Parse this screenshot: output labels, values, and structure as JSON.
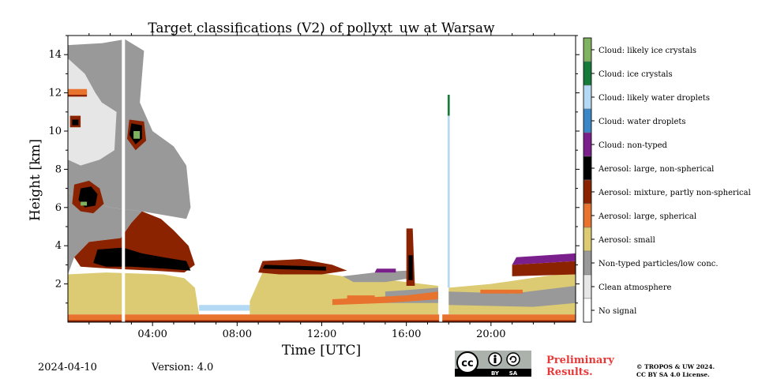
{
  "chart_data": {
    "type": "heatmap",
    "title": "Target classifications (V2) of pollyxt_uw at Warsaw",
    "xlabel": "Time [UTC]",
    "ylabel": "Height [km]",
    "xlim_hours": [
      0,
      24
    ],
    "ylim_km": [
      0,
      15
    ],
    "x_ticks": [
      "04:00",
      "08:00",
      "12:00",
      "16:00",
      "20:00"
    ],
    "x_tick_hours": [
      4,
      8,
      12,
      16,
      20
    ],
    "y_ticks": [
      "2",
      "4",
      "6",
      "8",
      "10",
      "12",
      "14"
    ],
    "y_tick_values": [
      2,
      4,
      6,
      8,
      10,
      12,
      14
    ],
    "legend": [
      {
        "label": "Cloud: likely ice crystals",
        "color": "#7fb35f"
      },
      {
        "label": "Cloud: ice crystals",
        "color": "#157a3a"
      },
      {
        "label": "Cloud: likely water droplets",
        "color": "#b3d9f5"
      },
      {
        "label": "Cloud: water droplets",
        "color": "#3a87c8"
      },
      {
        "label": "Cloud: non-typed",
        "color": "#7a1f8c"
      },
      {
        "label": "Aerosol: large, non-spherical",
        "color": "#000000"
      },
      {
        "label": "Aerosol: mixture, partly non-spherical",
        "color": "#8b2300"
      },
      {
        "label": "Aerosol: large, spherical",
        "color": "#e8732f"
      },
      {
        "label": "Aerosol: small",
        "color": "#dccb72"
      },
      {
        "label": "Non-typed particles/low conc.",
        "color": "#999999"
      },
      {
        "label": "Clean atmosphere",
        "color": "#e6e6e6"
      },
      {
        "label": "No signal",
        "color": "#ffffff"
      }
    ]
  },
  "footer": {
    "date": "2024-04-10",
    "version": "Version: 4.0",
    "preliminary": "Preliminary\nResults.",
    "copyright": "© TROPOS & UW 2024.\nCC BY SA 4.0 License.",
    "cc_label": "cc",
    "by_label": "BY",
    "sa_label": "SA"
  }
}
